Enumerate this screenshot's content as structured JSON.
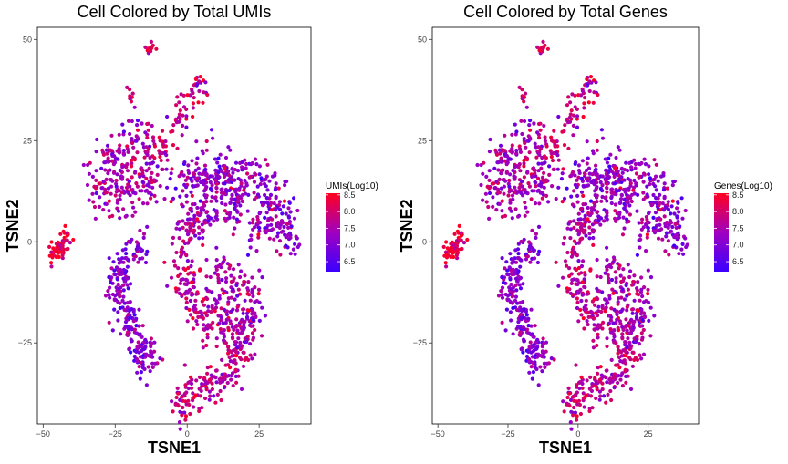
{
  "chart_data": [
    {
      "type": "scatter",
      "title": "Cell Colored by Total UMIs",
      "xlabel": "TSNE1",
      "ylabel": "TSNE2",
      "xlim": [
        -52,
        43
      ],
      "ylim": [
        -45,
        53
      ],
      "xticks": [
        -50,
        -25,
        0,
        25
      ],
      "yticks": [
        -25,
        0,
        25,
        50
      ],
      "grid": false,
      "legend": {
        "title": "UMIs(Log10)",
        "placement": "right",
        "range": [
          6.2,
          8.55
        ],
        "ticks": [
          6.5,
          7.0,
          7.5,
          8.0,
          8.5
        ],
        "color_low": "#3a00ff",
        "color_mid": "#a000c0",
        "color_high": "#ff0020"
      },
      "clusters": [
        {
          "label": "top-small",
          "points": [
            [
              -14,
              49
            ],
            [
              -13,
              48
            ],
            [
              -12.5,
              48.5
            ],
            [
              -13.5,
              47.5
            ]
          ],
          "spread": 0.8,
          "n": 14,
          "level": 0.8
        },
        {
          "label": "upper-left-spur",
          "points": [
            [
              -20,
              37
            ],
            [
              -19.5,
              35
            ]
          ],
          "spread": 0.6,
          "n": 8,
          "level": 0.8
        },
        {
          "label": "upper-diagonal-strand",
          "points": [
            [
              4,
              39
            ],
            [
              1,
              35
            ],
            [
              -1,
              31
            ],
            [
              -3,
              28
            ],
            [
              -6,
              25
            ],
            [
              -9,
              23
            ]
          ],
          "spread": 2.0,
          "n": 70,
          "level": 0.72
        },
        {
          "label": "upper-left-cluster",
          "points": [
            [
              -27,
              20
            ],
            [
              -22,
              22
            ],
            [
              -17,
              25
            ],
            [
              -12,
              22
            ],
            [
              -19,
              16
            ],
            [
              -25,
              14
            ],
            [
              -30,
              12
            ],
            [
              -22,
              11
            ],
            [
              -15,
              14
            ],
            [
              -10,
              18
            ],
            [
              -28,
              18
            ]
          ],
          "spread": 3.2,
          "n": 260,
          "level": 0.55
        },
        {
          "label": "left-small",
          "points": [
            [
              -45,
              -1
            ],
            [
              -43,
              0.5
            ],
            [
              -44,
              -2
            ],
            [
              -46,
              -3.5
            ],
            [
              -41,
              0.8
            ]
          ],
          "spread": 1.3,
          "n": 60,
          "level": 0.92
        },
        {
          "label": "left-arc",
          "points": [
            [
              -17,
              -2
            ],
            [
              -23,
              -6
            ],
            [
              -25,
              -11
            ],
            [
              -22,
              -17
            ],
            [
              -19,
              -22
            ],
            [
              -16,
              -26
            ],
            [
              -14,
              -29
            ]
          ],
          "spread": 2.2,
          "n": 240,
          "level": 0.4
        },
        {
          "label": "right-big",
          "points": [
            [
              2,
              15
            ],
            [
              8,
              18
            ],
            [
              12,
              16
            ],
            [
              16,
              14
            ],
            [
              22,
              16
            ],
            [
              28,
              12
            ],
            [
              33,
              6
            ],
            [
              35,
              1
            ],
            [
              26,
              4
            ],
            [
              16,
              8
            ],
            [
              8,
              9
            ],
            [
              4,
              5
            ]
          ],
          "spread": 3.0,
          "n": 460,
          "level": 0.45
        },
        {
          "label": "middle-column",
          "points": [
            [
              2,
              4
            ],
            [
              -1,
              -2
            ],
            [
              -3,
              -8
            ],
            [
              1,
              -12
            ],
            [
              5,
              -17
            ],
            [
              8,
              -21
            ],
            [
              14,
              -24
            ],
            [
              18,
              -27
            ],
            [
              16,
              -31
            ],
            [
              11,
              -34
            ],
            [
              6,
              -35
            ],
            [
              1,
              -38
            ],
            [
              -2,
              -40
            ]
          ],
          "spread": 2.4,
          "n": 340,
          "level": 0.65
        },
        {
          "label": "right-lower",
          "points": [
            [
              10,
              -6
            ],
            [
              15,
              -8
            ],
            [
              20,
              -11
            ],
            [
              22,
              -16
            ],
            [
              22,
              -21
            ],
            [
              19,
              -23
            ],
            [
              15,
              -19
            ],
            [
              12,
              -14
            ]
          ],
          "spread": 2.4,
          "n": 180,
          "level": 0.55
        }
      ]
    },
    {
      "type": "scatter",
      "title": "Cell Colored by Total Genes",
      "xlabel": "TSNE1",
      "ylabel": "TSNE2",
      "xlim": [
        -52,
        43
      ],
      "ylim": [
        -45,
        53
      ],
      "xticks": [
        -50,
        -25,
        0,
        25
      ],
      "yticks": [
        -25,
        0,
        25,
        50
      ],
      "grid": false,
      "legend": {
        "title": "Genes(Log10)",
        "placement": "right",
        "range": [
          6.2,
          8.55
        ],
        "ticks": [
          6.5,
          7.0,
          7.5,
          8.0,
          8.5
        ],
        "color_low": "#3a00ff",
        "color_mid": "#a000c0",
        "color_high": "#ff0020"
      },
      "clusters": [
        {
          "label": "top-small",
          "points": [
            [
              -14,
              49
            ],
            [
              -13,
              48
            ],
            [
              -12.5,
              48.5
            ],
            [
              -13.5,
              47.5
            ]
          ],
          "spread": 0.8,
          "n": 14,
          "level": 0.8
        },
        {
          "label": "upper-left-spur",
          "points": [
            [
              -20,
              37
            ],
            [
              -19.5,
              35
            ]
          ],
          "spread": 0.6,
          "n": 8,
          "level": 0.8
        },
        {
          "label": "upper-diagonal-strand",
          "points": [
            [
              4,
              39
            ],
            [
              1,
              35
            ],
            [
              -1,
              31
            ],
            [
              -3,
              28
            ],
            [
              -6,
              25
            ],
            [
              -9,
              23
            ]
          ],
          "spread": 2.0,
          "n": 70,
          "level": 0.72
        },
        {
          "label": "upper-left-cluster",
          "points": [
            [
              -27,
              20
            ],
            [
              -22,
              22
            ],
            [
              -17,
              25
            ],
            [
              -12,
              22
            ],
            [
              -19,
              16
            ],
            [
              -25,
              14
            ],
            [
              -30,
              12
            ],
            [
              -22,
              11
            ],
            [
              -15,
              14
            ],
            [
              -10,
              18
            ],
            [
              -28,
              18
            ]
          ],
          "spread": 3.2,
          "n": 260,
          "level": 0.55
        },
        {
          "label": "left-small",
          "points": [
            [
              -45,
              -1
            ],
            [
              -43,
              0.5
            ],
            [
              -44,
              -2
            ],
            [
              -46,
              -3.5
            ],
            [
              -41,
              0.8
            ]
          ],
          "spread": 1.3,
          "n": 60,
          "level": 0.92
        },
        {
          "label": "left-arc",
          "points": [
            [
              -17,
              -2
            ],
            [
              -23,
              -6
            ],
            [
              -25,
              -11
            ],
            [
              -22,
              -17
            ],
            [
              -19,
              -22
            ],
            [
              -16,
              -26
            ],
            [
              -14,
              -29
            ]
          ],
          "spread": 2.2,
          "n": 240,
          "level": 0.4
        },
        {
          "label": "right-big",
          "points": [
            [
              2,
              15
            ],
            [
              8,
              18
            ],
            [
              12,
              16
            ],
            [
              16,
              14
            ],
            [
              22,
              16
            ],
            [
              28,
              12
            ],
            [
              33,
              6
            ],
            [
              35,
              1
            ],
            [
              26,
              4
            ],
            [
              16,
              8
            ],
            [
              8,
              9
            ],
            [
              4,
              5
            ]
          ],
          "spread": 3.0,
          "n": 460,
          "level": 0.45
        },
        {
          "label": "middle-column",
          "points": [
            [
              2,
              4
            ],
            [
              -1,
              -2
            ],
            [
              -3,
              -8
            ],
            [
              1,
              -12
            ],
            [
              5,
              -17
            ],
            [
              8,
              -21
            ],
            [
              14,
              -24
            ],
            [
              18,
              -27
            ],
            [
              16,
              -31
            ],
            [
              11,
              -34
            ],
            [
              6,
              -35
            ],
            [
              1,
              -38
            ],
            [
              -2,
              -40
            ]
          ],
          "spread": 2.4,
          "n": 340,
          "level": 0.65
        },
        {
          "label": "right-lower",
          "points": [
            [
              10,
              -6
            ],
            [
              15,
              -8
            ],
            [
              20,
              -11
            ],
            [
              22,
              -16
            ],
            [
              22,
              -21
            ],
            [
              19,
              -23
            ],
            [
              15,
              -19
            ],
            [
              12,
              -14
            ]
          ],
          "spread": 2.4,
          "n": 180,
          "level": 0.55
        }
      ]
    }
  ]
}
